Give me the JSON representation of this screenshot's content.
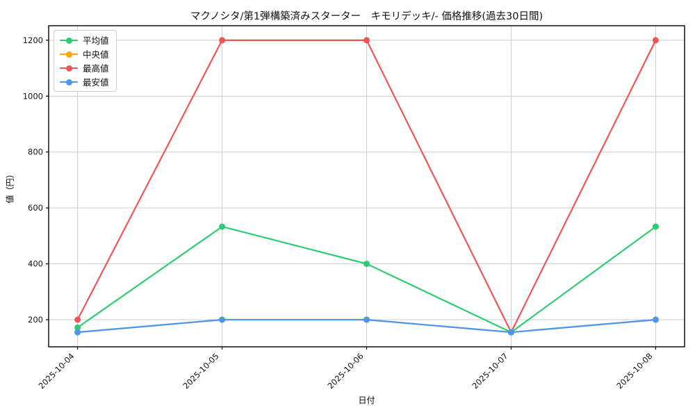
{
  "chart_data": {
    "type": "line",
    "title": "マクノシタ/第1弾構築済みスターター　キモリデッキ/- 価格推移(過去30日間)",
    "xlabel": "日付",
    "ylabel": "値（円）",
    "categories": [
      "2025-10-04",
      "2025-10-05",
      "2025-10-06",
      "2025-10-07",
      "2025-10-08"
    ],
    "series": [
      {
        "name": "平均値",
        "color": "#2ecc71",
        "values": [
          172,
          533,
          400,
          155,
          533
        ]
      },
      {
        "name": "中央値",
        "color": "#ffa500",
        "values": [
          155,
          200,
          200,
          155,
          200
        ]
      },
      {
        "name": "最高値",
        "color": "#f05555",
        "values": [
          200,
          1200,
          1200,
          155,
          1200
        ]
      },
      {
        "name": "最安値",
        "color": "#4a97f0",
        "values": [
          155,
          200,
          200,
          155,
          200
        ]
      }
    ],
    "yticks": [
      200,
      400,
      600,
      800,
      1000,
      1200
    ],
    "ylim": [
      103,
      1252
    ],
    "grid": true,
    "legend_position": "upper-left",
    "grid_color": "#cccccc",
    "spine_color": "#000000"
  }
}
